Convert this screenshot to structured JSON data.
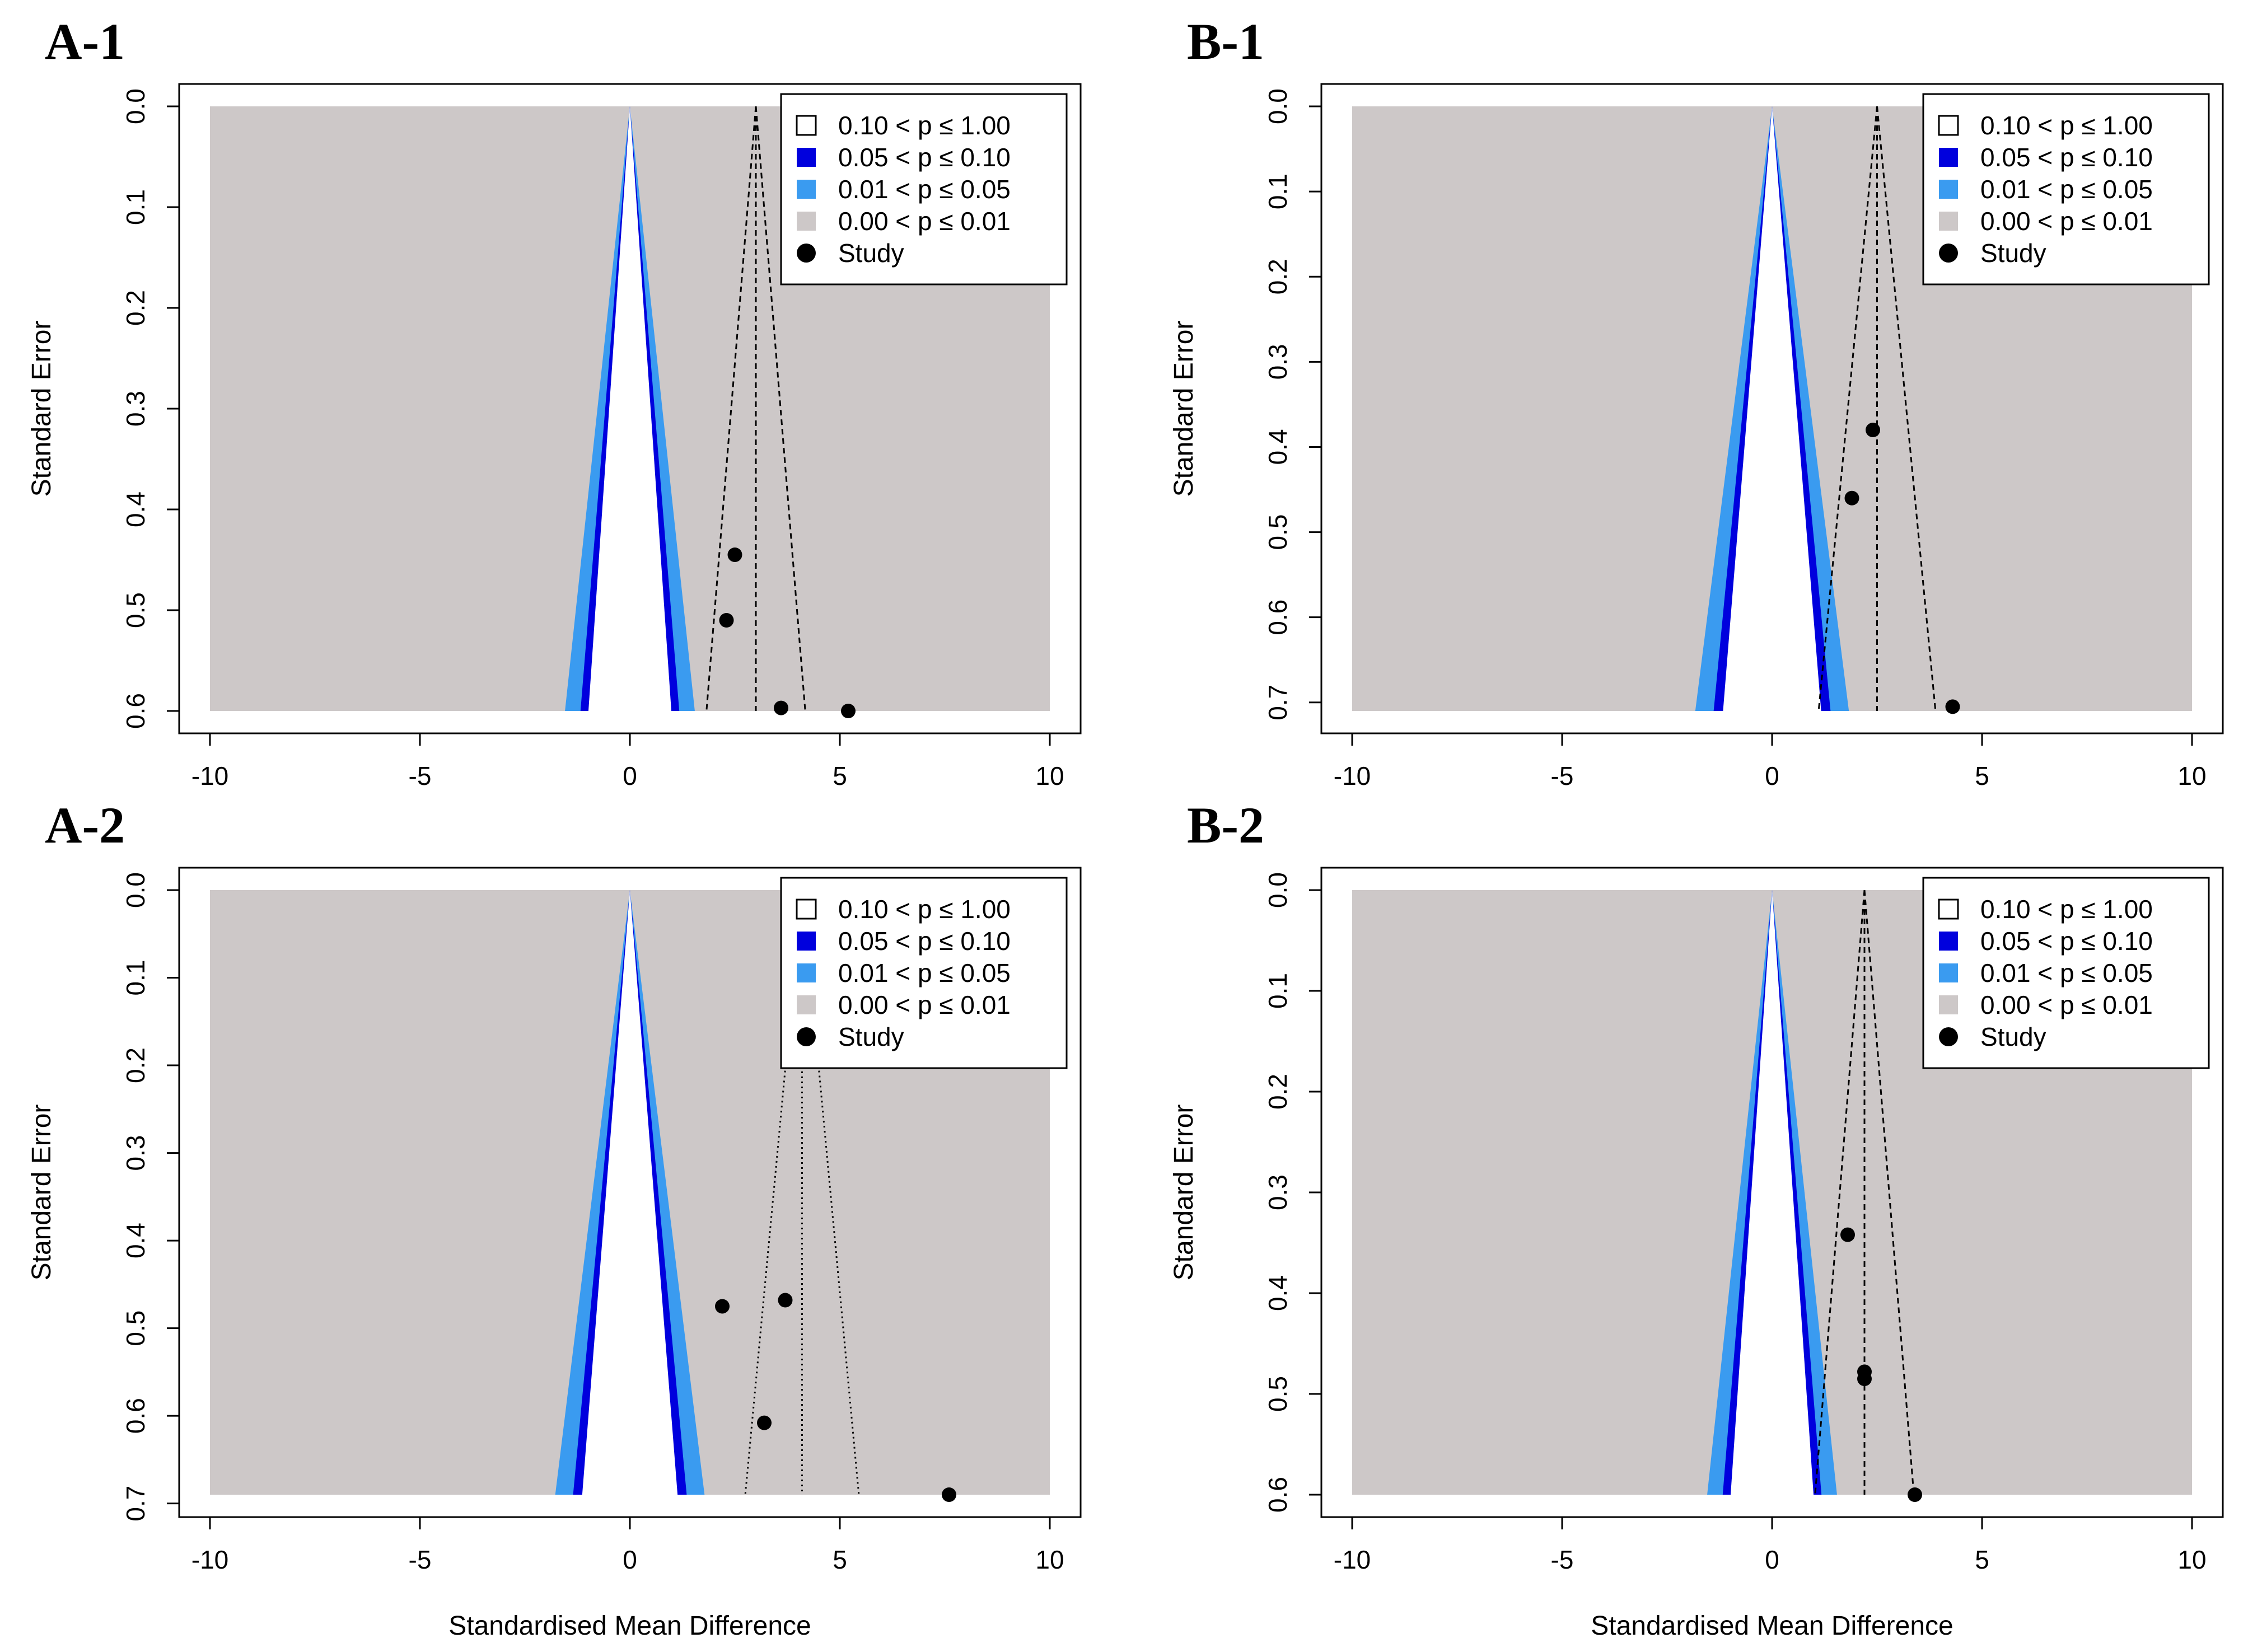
{
  "figure": {
    "colors": {
      "p_010_100": "#ffffff",
      "p_005_010": "#0000dd",
      "p_001_005": "#3a9bf0",
      "p_000_001": "#cdc8c8",
      "study": "#000000",
      "frame": "#000000"
    }
  },
  "chart_data": [
    {
      "id": "A-1",
      "type": "scatter",
      "subtype": "contour-enhanced funnel plot",
      "title": "A-1",
      "xlabel": "",
      "ylabel": "Standard Error",
      "xlim": [
        -10,
        10
      ],
      "ylim": [
        0.6,
        0.0
      ],
      "xticks": [
        "-10",
        "-5",
        "0",
        "5",
        "10"
      ],
      "yticks": [
        "0.0",
        "0.1",
        "0.2",
        "0.3",
        "0.4",
        "0.5",
        "0.6"
      ],
      "ytick_values": [
        0.0,
        0.1,
        0.2,
        0.3,
        0.4,
        0.5,
        0.6
      ],
      "funnel_center": 0,
      "pooled_estimate": 3.0,
      "pooled_line_style": "dashed",
      "legend": [
        "0.10 < p ≤ 1.00",
        "0.05 < p ≤ 0.10",
        "0.01 < p ≤ 0.05",
        "0.00 < p ≤ 0.01",
        "Study"
      ],
      "legend_position": "top-right",
      "points": [
        {
          "x": 2.5,
          "y": 0.445
        },
        {
          "x": 2.3,
          "y": 0.51
        },
        {
          "x": 3.6,
          "y": 0.597
        },
        {
          "x": 5.2,
          "y": 0.6
        }
      ]
    },
    {
      "id": "B-1",
      "type": "scatter",
      "subtype": "contour-enhanced funnel plot",
      "title": "B-1",
      "xlabel": "",
      "ylabel": "Standard Error",
      "xlim": [
        -10,
        10
      ],
      "ylim": [
        0.71,
        0.0
      ],
      "xticks": [
        "-10",
        "-5",
        "0",
        "5",
        "10"
      ],
      "yticks": [
        "0.0",
        "0.1",
        "0.2",
        "0.3",
        "0.4",
        "0.5",
        "0.6",
        "0.7"
      ],
      "ytick_values": [
        0.0,
        0.1,
        0.2,
        0.3,
        0.4,
        0.5,
        0.6,
        0.7
      ],
      "funnel_center": 0,
      "pooled_estimate": 2.5,
      "pooled_line_style": "dashed",
      "legend": [
        "0.10 < p ≤ 1.00",
        "0.05 < p ≤ 0.10",
        "0.01 < p ≤ 0.05",
        "0.00 < p ≤ 0.01",
        "Study"
      ],
      "legend_position": "top-right",
      "points": [
        {
          "x": 2.4,
          "y": 0.38
        },
        {
          "x": 1.9,
          "y": 0.46
        },
        {
          "x": 4.3,
          "y": 0.705
        }
      ]
    },
    {
      "id": "A-2",
      "type": "scatter",
      "subtype": "contour-enhanced funnel plot",
      "title": "A-2",
      "xlabel": "Standardised Mean Difference",
      "ylabel": "Standard Error",
      "xlim": [
        -10,
        10
      ],
      "ylim": [
        0.69,
        0.0
      ],
      "xticks": [
        "-10",
        "-5",
        "0",
        "5",
        "10"
      ],
      "yticks": [
        "0.0",
        "0.1",
        "0.2",
        "0.3",
        "0.4",
        "0.5",
        "0.6",
        "0.7"
      ],
      "ytick_values": [
        0.0,
        0.1,
        0.2,
        0.3,
        0.4,
        0.5,
        0.6,
        0.7
      ],
      "funnel_center": 0,
      "pooled_estimate": 4.1,
      "pooled_line_style": "dotted",
      "legend": [
        "0.10 < p ≤ 1.00",
        "0.05 < p ≤ 0.10",
        "0.01 < p ≤ 0.05",
        "0.00 < p ≤ 0.01",
        "Study"
      ],
      "legend_position": "top-right",
      "points": [
        {
          "x": 2.2,
          "y": 0.475
        },
        {
          "x": 3.7,
          "y": 0.468
        },
        {
          "x": 3.2,
          "y": 0.608
        },
        {
          "x": 7.6,
          "y": 0.69
        }
      ]
    },
    {
      "id": "B-2",
      "type": "scatter",
      "subtype": "contour-enhanced funnel plot",
      "title": "B-2",
      "xlabel": "Standardised Mean Difference",
      "ylabel": "Standard Error",
      "xlim": [
        -10,
        10
      ],
      "ylim": [
        0.6,
        0.0
      ],
      "xticks": [
        "-10",
        "-5",
        "0",
        "5",
        "10"
      ],
      "yticks": [
        "0.0",
        "0.1",
        "0.2",
        "0.3",
        "0.4",
        "0.5",
        "0.6"
      ],
      "ytick_values": [
        0.0,
        0.1,
        0.2,
        0.3,
        0.4,
        0.5,
        0.6
      ],
      "funnel_center": 0,
      "pooled_estimate": 2.2,
      "pooled_line_style": "dashed",
      "legend": [
        "0.10 < p ≤ 1.00",
        "0.05 < p ≤ 0.10",
        "0.01 < p ≤ 0.05",
        "0.00 < p ≤ 0.01",
        "Study"
      ],
      "legend_position": "top-right",
      "points": [
        {
          "x": 1.8,
          "y": 0.342
        },
        {
          "x": 2.2,
          "y": 0.478
        },
        {
          "x": 2.2,
          "y": 0.485
        },
        {
          "x": 3.4,
          "y": 0.6
        }
      ]
    }
  ]
}
